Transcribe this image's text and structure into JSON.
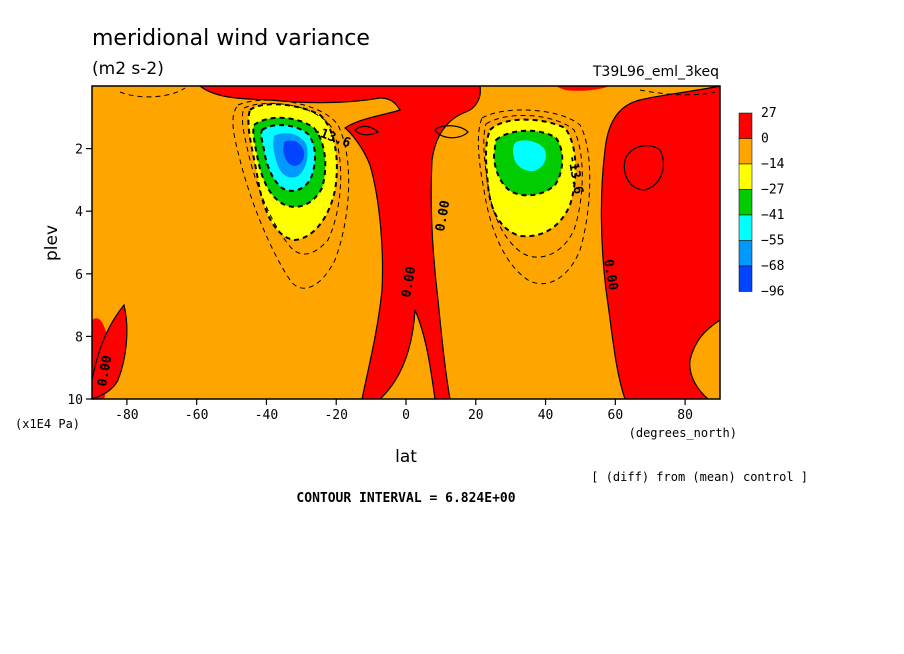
{
  "chart_data": {
    "type": "heatmap",
    "title": "meridional wind variance",
    "units": "(m2 s-2)",
    "experiment": "T39L96_eml_3keq",
    "xlabel": "lat",
    "xunits": "(degrees_north)",
    "ylabel": "plev",
    "yunits": "(x1E4 Pa)",
    "xlim": [
      -90,
      90
    ],
    "ylim": [
      10,
      0
    ],
    "x_ticks": [
      "-80",
      "-60",
      "-40",
      "-20",
      "0",
      "20",
      "40",
      "60",
      "80"
    ],
    "y_ticks": [
      "2",
      "4",
      "6",
      "8",
      "10"
    ],
    "note": "[ (diff) from (mean) control ]",
    "contour_interval": "CONTOUR INTERVAL = 6.824E+00",
    "contour_labels": [
      "-13.6",
      "-13.6",
      "0.00",
      "0.00",
      "0.00",
      "0.00"
    ],
    "colorbar": {
      "labels": [
        "27",
        "0",
        "−14",
        "−27",
        "−41",
        "−55",
        "−68",
        "−96"
      ],
      "colors": [
        "#ff0000",
        "#ffa500",
        "#ffff00",
        "#00cc00",
        "#00ffff",
        "#0099ff",
        "#0044ff"
      ]
    },
    "features": [
      {
        "name": "southern minimum",
        "lat": -30,
        "plev": 2.3,
        "min_value": -96
      },
      {
        "name": "northern minimum",
        "lat": 35,
        "plev": 2.4,
        "min_value": -55
      },
      {
        "name": "equatorial positive column",
        "lat": 0,
        "plev_range": [
          0,
          10
        ],
        "sign": "positive"
      },
      {
        "name": "northern high-latitude positive",
        "lat": 65,
        "plev_range": [
          1,
          10
        ],
        "sign": "positive"
      }
    ]
  }
}
